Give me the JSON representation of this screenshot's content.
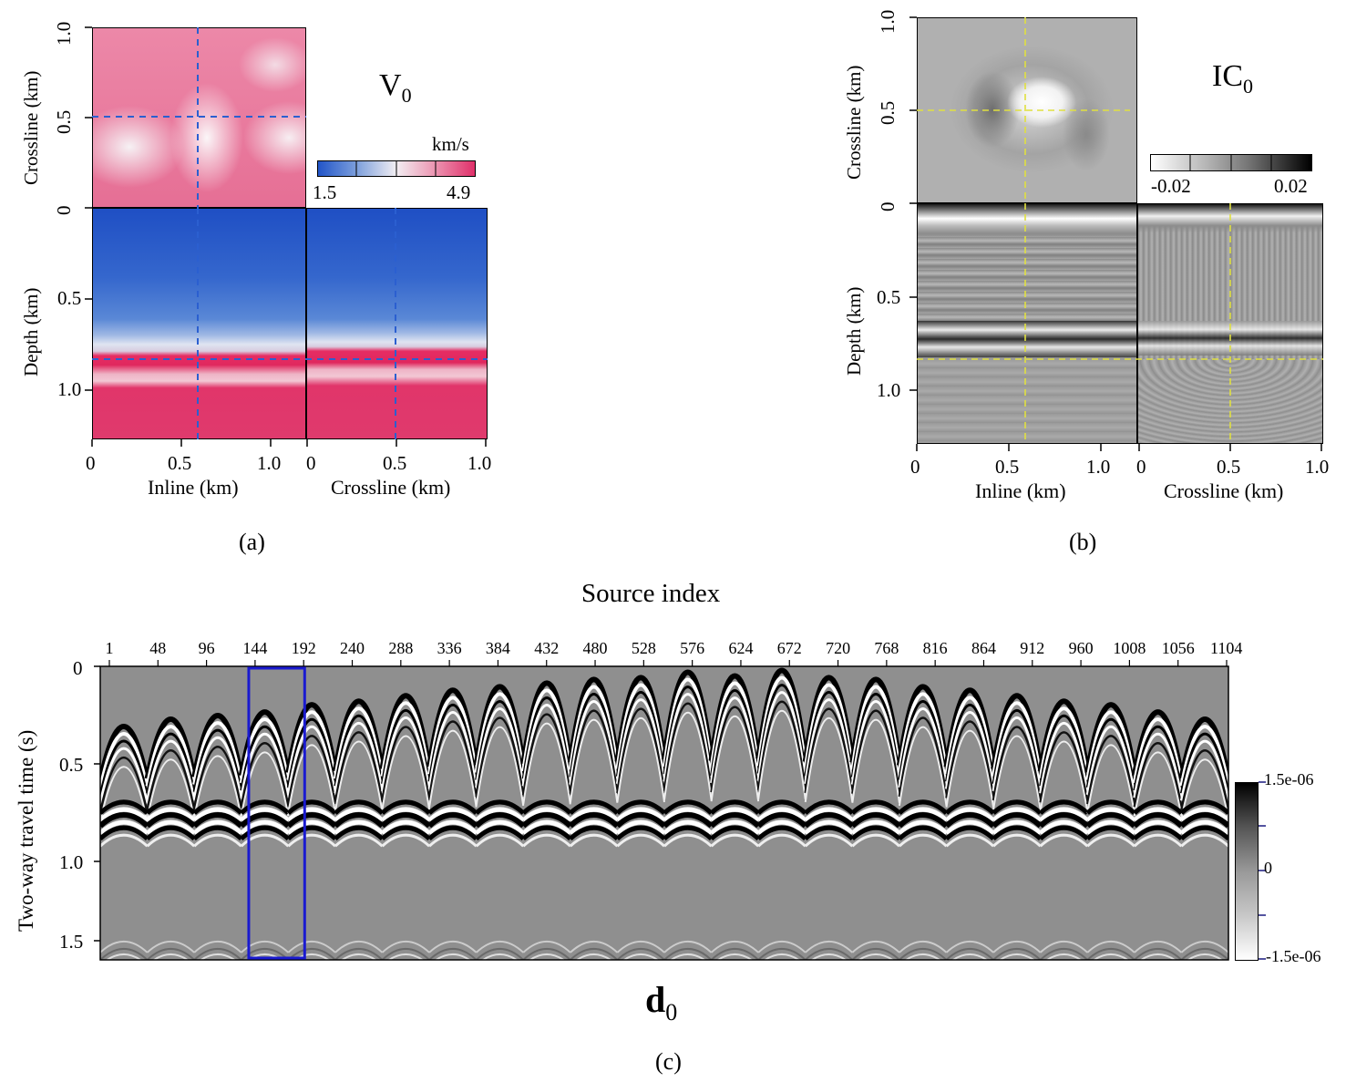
{
  "panel_a": {
    "title_main": "V",
    "title_sub": "0",
    "colorbar": {
      "unit": "km/s",
      "min_label": "1.5",
      "max_label": "4.9",
      "colors": [
        "#2255c8",
        "#f2eef2",
        "#e0306a"
      ]
    },
    "inline_ticks": [
      "0",
      "0.5",
      "1.0"
    ],
    "crossline_ticks": [
      "0",
      "0.5",
      "1.0"
    ],
    "depth_ticks": [
      "0",
      "0.5",
      "1.0"
    ],
    "top_crossline_ticks": [
      "0",
      "0.5",
      "1.0"
    ],
    "xlabel_inline": "Inline (km)",
    "xlabel_crossline": "Crossline (km)",
    "ylabel_depth": "Depth (km)",
    "ylabel_crossline": "Crossline (km)",
    "caption": "(a)"
  },
  "panel_b": {
    "title_main": "IC",
    "title_sub": "0",
    "colorbar": {
      "min_label": "-0.02",
      "max_label": "0.02"
    },
    "inline_ticks": [
      "0",
      "0.5",
      "1.0"
    ],
    "crossline_ticks": [
      "0",
      "0.5",
      "1.0"
    ],
    "depth_ticks": [
      "0",
      "0.5",
      "1.0"
    ],
    "top_crossline_ticks": [
      "0",
      "0.5",
      "1.0"
    ],
    "xlabel_inline": "Inline (km)",
    "xlabel_crossline": "Crossline (km)",
    "ylabel_depth": "Depth (km)",
    "ylabel_crossline": "Crossline (km)",
    "caption": "(b)"
  },
  "panel_c": {
    "top_axis_label": "Source index",
    "source_ticks": [
      "1",
      "48",
      "96",
      "144",
      "192",
      "240",
      "288",
      "336",
      "384",
      "432",
      "480",
      "528",
      "576",
      "624",
      "672",
      "720",
      "768",
      "816",
      "864",
      "912",
      "960",
      "1008",
      "1056",
      "1104"
    ],
    "time_ticks": [
      "0",
      "0.5",
      "1.0",
      "1.5"
    ],
    "ylabel": "Two-way travel time (s)",
    "colorbar": {
      "max_label": "1.5e-06",
      "mid_label": "0",
      "min_label": "-1.5e-06"
    },
    "title_main": "d",
    "title_sub": "0",
    "caption": "(c)"
  },
  "chart_data": [
    {
      "type": "heatmap",
      "panel": "(a)",
      "description_values": {
        "colorbar_range_km_s": [
          1.5,
          4.9
        ]
      },
      "axes": {
        "inline_km": [
          0,
          1.0
        ],
        "crossline_km": [
          0,
          1.0
        ],
        "depth_km": [
          0,
          1.25
        ]
      },
      "slice_lines": {
        "inline_km": 0.58,
        "crossline_km": 0.5,
        "depth_km": 0.83
      },
      "layers": [
        {
          "depth_km": [
            0,
            0.63
          ],
          "velocity": "low"
        },
        {
          "depth_km": [
            0.63,
            0.73
          ],
          "velocity": "mid"
        },
        {
          "depth_km": [
            0.73,
            0.8
          ],
          "velocity": "high"
        },
        {
          "depth_km": [
            0.8,
            0.92
          ],
          "velocity": "mid-high"
        },
        {
          "depth_km": [
            0.92,
            1.25
          ],
          "velocity": "high"
        }
      ]
    },
    {
      "type": "heatmap",
      "panel": "(b)",
      "colorbar_range": [
        -0.02,
        0.02
      ],
      "axes": {
        "inline_km": [
          0,
          1.0
        ],
        "crossline_km": [
          0,
          1.0
        ],
        "depth_km": [
          0,
          1.25
        ]
      },
      "slice_lines": {
        "inline_km": 0.58,
        "crossline_km": 0.5,
        "depth_km": 0.83
      }
    },
    {
      "type": "heatmap",
      "panel": "(c)",
      "x_label": "Source index",
      "x_range": [
        1,
        1104
      ],
      "y_range_s": [
        0,
        1.6
      ],
      "colorbar_range": [
        -1.5e-06,
        1.5e-06
      ],
      "highlight_box": {
        "source_range": [
          144,
          192
        ],
        "time_range_s": [
          0,
          1.6
        ],
        "color": "#1a1ad0"
      },
      "gathers": 24,
      "gather_apex_times_s": [
        0.32,
        0.28,
        0.26,
        0.24,
        0.2,
        0.18,
        0.15,
        0.12,
        0.1,
        0.08,
        0.06,
        0.05,
        0.02,
        0.04,
        0.01,
        0.05,
        0.06,
        0.1,
        0.12,
        0.15,
        0.18,
        0.2,
        0.24,
        0.28
      ]
    }
  ]
}
